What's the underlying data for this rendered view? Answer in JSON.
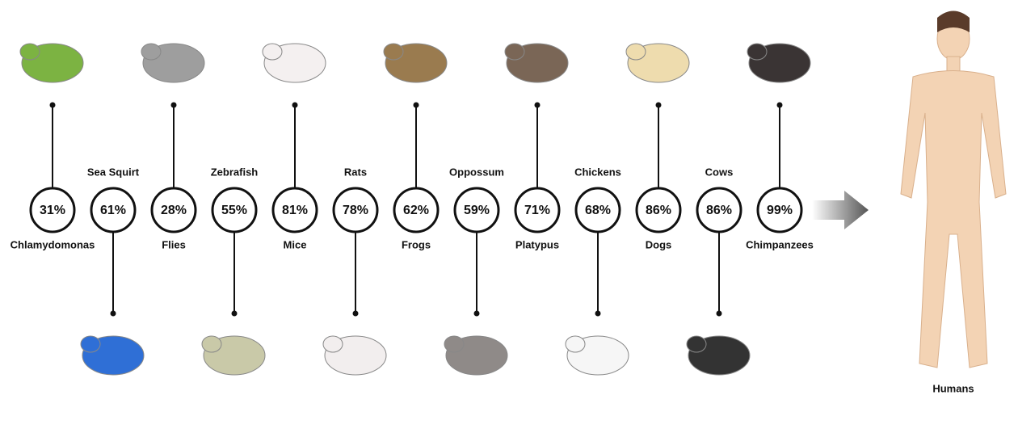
{
  "organisms": [
    {
      "name": "Chlamydomonas",
      "percent": "31%",
      "position": "top"
    },
    {
      "name": "Sea Squirt",
      "percent": "61%",
      "position": "bottom"
    },
    {
      "name": "Flies",
      "percent": "28%",
      "position": "top"
    },
    {
      "name": "Zebrafish",
      "percent": "55%",
      "position": "bottom"
    },
    {
      "name": "Mice",
      "percent": "81%",
      "position": "top"
    },
    {
      "name": "Rats",
      "percent": "78%",
      "position": "bottom"
    },
    {
      "name": "Frogs",
      "percent": "62%",
      "position": "top"
    },
    {
      "name": "Oppossum",
      "percent": "59%",
      "position": "bottom"
    },
    {
      "name": "Platypus",
      "percent": "71%",
      "position": "top"
    },
    {
      "name": "Chickens",
      "percent": "68%",
      "position": "bottom"
    },
    {
      "name": "Dogs",
      "percent": "86%",
      "position": "top"
    },
    {
      "name": "Cows",
      "percent": "86%",
      "position": "bottom"
    },
    {
      "name": "Chimpanzees",
      "percent": "99%",
      "position": "top"
    }
  ],
  "humans": "Humans"
}
